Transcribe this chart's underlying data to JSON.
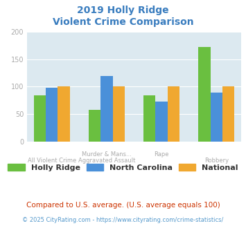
{
  "title_line1": "2019 Holly Ridge",
  "title_line2": "Violent Crime Comparison",
  "series": {
    "Holly Ridge": [
      84,
      58,
      84,
      173
    ],
    "North Carolina": [
      98,
      120,
      73,
      89
    ],
    "National": [
      101,
      101,
      101,
      101
    ]
  },
  "colors": {
    "Holly Ridge": "#6abf40",
    "North Carolina": "#4a90d9",
    "National": "#f0a830"
  },
  "top_labels": [
    "",
    "Murder & Mans...",
    "Rape",
    ""
  ],
  "bot_labels": [
    "All Violent Crime",
    "Aggravated Assault",
    "",
    "Robbery"
  ],
  "ylim": [
    0,
    200
  ],
  "yticks": [
    0,
    50,
    100,
    150,
    200
  ],
  "plot_bg": "#dce9f0",
  "title_color": "#3a7dbf",
  "tick_color": "#aaaaaa",
  "legend_labels": [
    "Holly Ridge",
    "North Carolina",
    "National"
  ],
  "footnote1": "Compared to U.S. average. (U.S. average equals 100)",
  "footnote2": "© 2025 CityRating.com - https://www.cityrating.com/crime-statistics/",
  "footnote1_color": "#cc3300",
  "footnote2_color": "#5599cc"
}
